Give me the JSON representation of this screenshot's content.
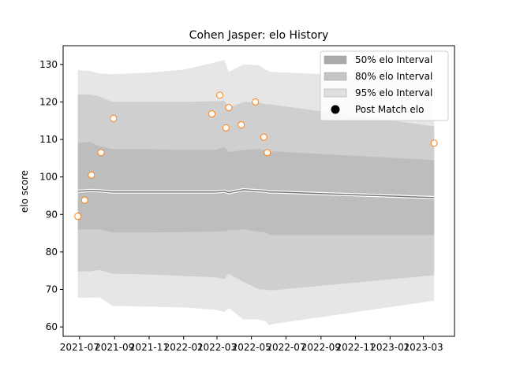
{
  "chart_data": {
    "type": "area",
    "title": "Cohen Jasper: elo History",
    "xlabel": "",
    "ylabel": "elo score",
    "ylim": [
      57.5,
      135
    ],
    "yticks": [
      60,
      70,
      80,
      90,
      100,
      110,
      120,
      130
    ],
    "xlim": [
      "2021-06-02",
      "2023-04-25"
    ],
    "xticks": [
      "2021-07-01",
      "2021-09-01",
      "2021-11-01",
      "2022-01-01",
      "2022-03-01",
      "2022-05-01",
      "2022-07-01",
      "2022-09-01",
      "2022-11-01",
      "2023-01-01",
      "2023-03-01"
    ],
    "xtick_labels": [
      "2021-07",
      "2021-09",
      "2021-11",
      "2022-01",
      "2022-03",
      "2022-05",
      "2022-07",
      "2022-09",
      "2022-11",
      "2023-01",
      "2023-03"
    ],
    "legend_position": "upper right",
    "grid": false,
    "colors": {
      "band_50": "#aaaaaa",
      "band_80": "#cfcfcf",
      "band_95": "#e6e6e6",
      "mean_line": "#777777",
      "points_edge": "#ff7f0e",
      "points_face": "#ffffff"
    },
    "legend": [
      {
        "label": "50% elo Interval",
        "kind": "band_50"
      },
      {
        "label": "80% elo Interval",
        "kind": "band_80"
      },
      {
        "label": "95% elo Interval",
        "kind": "band_95"
      },
      {
        "label": "Post Match elo",
        "kind": "marker"
      }
    ],
    "bands": {
      "x": [
        "2021-06-28",
        "2021-07-12",
        "2021-07-20",
        "2021-08-05",
        "2021-08-28",
        "2021-11-01",
        "2022-01-01",
        "2022-02-27",
        "2022-03-14",
        "2022-03-22",
        "2022-04-17",
        "2022-05-14",
        "2022-05-26",
        "2022-06-01",
        "2022-06-10",
        "2023-03-20"
      ],
      "mean": [
        96.2,
        96.3,
        96.4,
        96.3,
        96.0,
        96.0,
        96.0,
        96.0,
        96.2,
        95.8,
        96.6,
        96.3,
        96.2,
        96.0,
        96.0,
        94.5
      ],
      "lower_50": [
        86.0,
        86.0,
        86.0,
        86.0,
        85.2,
        85.2,
        85.3,
        85.4,
        85.5,
        85.8,
        86.0,
        85.4,
        85.2,
        84.6,
        84.5,
        84.5
      ],
      "upper_50": [
        109.0,
        109.3,
        109.3,
        108.2,
        107.4,
        107.4,
        107.2,
        107.2,
        108.0,
        106.6,
        107.2,
        107.4,
        107.0,
        106.8,
        106.8,
        104.5
      ],
      "lower_80": [
        74.8,
        74.8,
        74.8,
        75.2,
        74.2,
        74.0,
        73.6,
        73.2,
        72.8,
        74.2,
        72.0,
        70.0,
        70.0,
        69.8,
        69.8,
        73.8
      ],
      "upper_80": [
        122.0,
        122.0,
        122.0,
        121.5,
        120.0,
        120.0,
        120.0,
        120.2,
        120.3,
        118.5,
        120.0,
        119.8,
        119.4,
        119.4,
        119.2,
        113.5
      ],
      "lower_95": [
        67.8,
        67.8,
        67.8,
        67.9,
        65.6,
        65.4,
        65.2,
        64.6,
        64.0,
        65.0,
        62.0,
        62.0,
        61.5,
        60.5,
        60.8,
        67.0
      ],
      "upper_95": [
        128.5,
        128.3,
        128.3,
        127.6,
        127.4,
        127.8,
        128.6,
        130.6,
        131.2,
        128.0,
        130.0,
        129.8,
        128.6,
        128.2,
        128.0,
        126.0
      ]
    },
    "points": {
      "x": [
        "2021-06-28",
        "2021-07-10",
        "2021-07-22",
        "2021-08-08",
        "2021-08-30",
        "2022-02-20",
        "2022-03-06",
        "2022-03-17",
        "2022-03-22",
        "2022-04-13",
        "2022-05-08",
        "2022-05-23",
        "2022-05-29",
        "2023-03-20"
      ],
      "y": [
        89.5,
        93.8,
        100.5,
        106.5,
        115.6,
        116.8,
        121.8,
        113.1,
        118.5,
        113.9,
        120.0,
        110.6,
        106.5,
        109.0
      ]
    }
  }
}
